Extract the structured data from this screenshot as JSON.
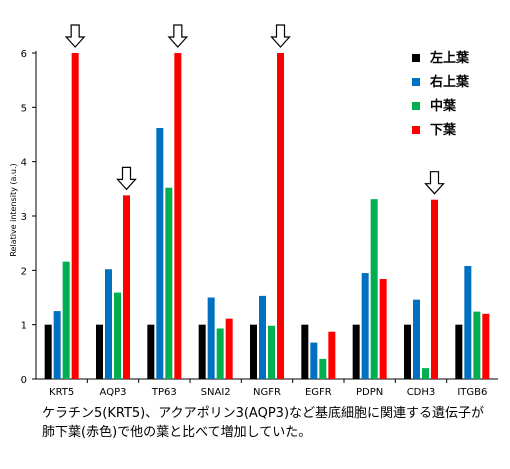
{
  "chart_data": {
    "type": "bar",
    "ylabel": "Relative intensity (a.u.)",
    "ylim": [
      0,
      6
    ],
    "yticks": [
      0,
      1,
      2,
      3,
      4,
      5,
      6
    ],
    "categories": [
      "KRT5",
      "AQP3",
      "TP63",
      "SNAI2",
      "NGFR",
      "EGFR",
      "PDPN",
      "CDH3",
      "ITGB6"
    ],
    "series": [
      {
        "name": "左上葉",
        "color": "#000000",
        "values": [
          1.0,
          1.0,
          1.0,
          1.0,
          1.0,
          1.0,
          1.0,
          1.0,
          1.0
        ]
      },
      {
        "name": "右上葉",
        "color": "#0070c0",
        "values": [
          1.25,
          2.02,
          4.62,
          1.5,
          1.53,
          0.67,
          1.95,
          1.46,
          2.08
        ]
      },
      {
        "name": "中葉",
        "color": "#00b050",
        "values": [
          2.16,
          1.59,
          3.52,
          0.93,
          0.98,
          0.37,
          3.31,
          0.2,
          1.24
        ]
      },
      {
        "name": "下葉",
        "color": "#ff0000",
        "values": [
          6.0,
          3.38,
          6.0,
          1.11,
          6.0,
          0.87,
          1.84,
          3.3,
          1.2
        ]
      }
    ],
    "highlighted": [
      "KRT5",
      "AQP3",
      "TP63",
      "NGFR",
      "CDH3"
    ],
    "legend_position": "top-right",
    "grid": false
  },
  "caption": {
    "line1": "ケラチン5(KRT5)、アクアポリン3(AQP3)など基底細胞に関連する遺伝子が",
    "line2": "肺下葉(赤色)で他の葉と比べて増加していた。"
  }
}
